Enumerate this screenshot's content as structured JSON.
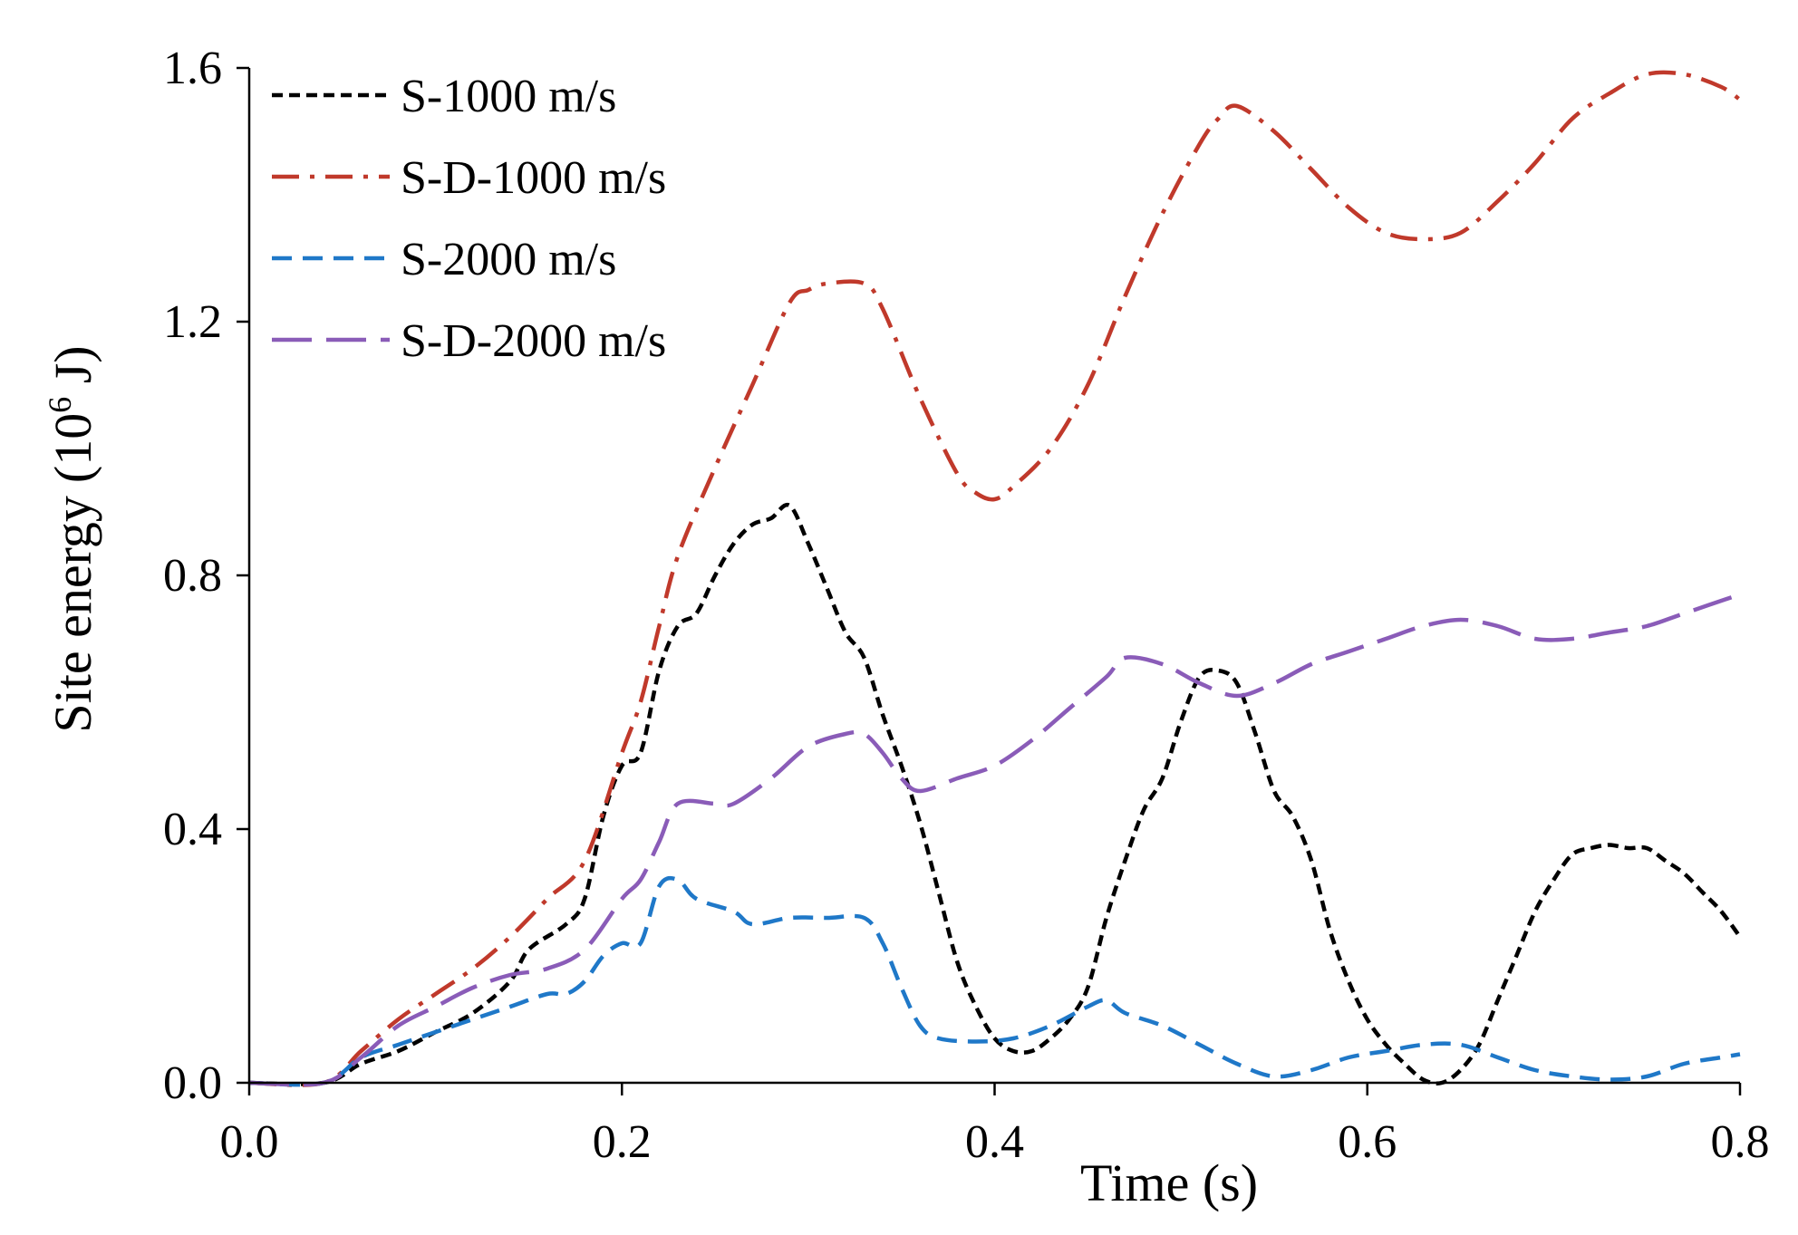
{
  "chart_data": {
    "type": "line",
    "title": "",
    "xlabel": "Time (s)",
    "ylabel": "Site energy",
    "ylabel_unit": "(10",
    "ylabel_exp": "6",
    "ylabel_unit_end": " J)",
    "xlim": [
      0,
      0.8
    ],
    "ylim": [
      0,
      1.6
    ],
    "x_ticks": [
      0.0,
      0.2,
      0.4,
      0.6,
      0.8
    ],
    "y_ticks": [
      0.0,
      0.4,
      0.8,
      1.2,
      1.6
    ],
    "x_tick_labels": [
      "0.0",
      "0.2",
      "0.4",
      "0.6",
      "0.8"
    ],
    "y_tick_labels": [
      "0.0",
      "0.4",
      "0.8",
      "1.2",
      "1.6"
    ],
    "grid": false,
    "legend_position": "top-left",
    "series": [
      {
        "name": "S-1000 m/s",
        "color": "#000000",
        "dash": "short",
        "points": [
          [
            0,
            0
          ],
          [
            0.04,
            0
          ],
          [
            0.06,
            0.03
          ],
          [
            0.08,
            0.05
          ],
          [
            0.1,
            0.08
          ],
          [
            0.12,
            0.11
          ],
          [
            0.14,
            0.16
          ],
          [
            0.15,
            0.21
          ],
          [
            0.17,
            0.25
          ],
          [
            0.18,
            0.29
          ],
          [
            0.19,
            0.42
          ],
          [
            0.2,
            0.5
          ],
          [
            0.21,
            0.52
          ],
          [
            0.22,
            0.65
          ],
          [
            0.23,
            0.72
          ],
          [
            0.24,
            0.74
          ],
          [
            0.25,
            0.8
          ],
          [
            0.26,
            0.85
          ],
          [
            0.27,
            0.88
          ],
          [
            0.28,
            0.89
          ],
          [
            0.29,
            0.91
          ],
          [
            0.3,
            0.85
          ],
          [
            0.31,
            0.78
          ],
          [
            0.32,
            0.71
          ],
          [
            0.33,
            0.67
          ],
          [
            0.34,
            0.58
          ],
          [
            0.35,
            0.5
          ],
          [
            0.36,
            0.41
          ],
          [
            0.37,
            0.3
          ],
          [
            0.38,
            0.19
          ],
          [
            0.39,
            0.12
          ],
          [
            0.4,
            0.07
          ],
          [
            0.41,
            0.05
          ],
          [
            0.42,
            0.05
          ],
          [
            0.43,
            0.07
          ],
          [
            0.44,
            0.1
          ],
          [
            0.45,
            0.15
          ],
          [
            0.46,
            0.26
          ],
          [
            0.47,
            0.35
          ],
          [
            0.48,
            0.43
          ],
          [
            0.49,
            0.48
          ],
          [
            0.5,
            0.57
          ],
          [
            0.51,
            0.64
          ],
          [
            0.52,
            0.65
          ],
          [
            0.53,
            0.63
          ],
          [
            0.54,
            0.55
          ],
          [
            0.55,
            0.46
          ],
          [
            0.56,
            0.42
          ],
          [
            0.57,
            0.35
          ],
          [
            0.58,
            0.24
          ],
          [
            0.59,
            0.16
          ],
          [
            0.6,
            0.1
          ],
          [
            0.61,
            0.06
          ],
          [
            0.62,
            0.03
          ],
          [
            0.63,
            0.005
          ],
          [
            0.64,
            0
          ],
          [
            0.65,
            0.02
          ],
          [
            0.66,
            0.06
          ],
          [
            0.67,
            0.13
          ],
          [
            0.68,
            0.2
          ],
          [
            0.69,
            0.27
          ],
          [
            0.7,
            0.32
          ],
          [
            0.71,
            0.36
          ],
          [
            0.72,
            0.37
          ],
          [
            0.73,
            0.375
          ],
          [
            0.74,
            0.37
          ],
          [
            0.75,
            0.37
          ],
          [
            0.76,
            0.35
          ],
          [
            0.77,
            0.33
          ],
          [
            0.78,
            0.3
          ],
          [
            0.79,
            0.27
          ],
          [
            0.8,
            0.23
          ]
        ]
      },
      {
        "name": "S-D-1000 m/s",
        "color": "#c0392b",
        "dash": "dashdot",
        "points": [
          [
            0,
            0
          ],
          [
            0.04,
            0
          ],
          [
            0.06,
            0.05
          ],
          [
            0.08,
            0.1
          ],
          [
            0.1,
            0.14
          ],
          [
            0.12,
            0.18
          ],
          [
            0.14,
            0.23
          ],
          [
            0.16,
            0.29
          ],
          [
            0.18,
            0.35
          ],
          [
            0.2,
            0.52
          ],
          [
            0.21,
            0.6
          ],
          [
            0.22,
            0.72
          ],
          [
            0.23,
            0.83
          ],
          [
            0.25,
            0.97
          ],
          [
            0.27,
            1.1
          ],
          [
            0.29,
            1.23
          ],
          [
            0.3,
            1.25
          ],
          [
            0.31,
            1.26
          ],
          [
            0.33,
            1.26
          ],
          [
            0.34,
            1.22
          ],
          [
            0.36,
            1.08
          ],
          [
            0.38,
            0.96
          ],
          [
            0.39,
            0.93
          ],
          [
            0.4,
            0.92
          ],
          [
            0.41,
            0.94
          ],
          [
            0.43,
            1.0
          ],
          [
            0.45,
            1.1
          ],
          [
            0.47,
            1.24
          ],
          [
            0.49,
            1.37
          ],
          [
            0.51,
            1.48
          ],
          [
            0.52,
            1.52
          ],
          [
            0.53,
            1.54
          ],
          [
            0.55,
            1.5
          ],
          [
            0.57,
            1.44
          ],
          [
            0.59,
            1.38
          ],
          [
            0.61,
            1.34
          ],
          [
            0.63,
            1.33
          ],
          [
            0.65,
            1.34
          ],
          [
            0.67,
            1.39
          ],
          [
            0.69,
            1.45
          ],
          [
            0.71,
            1.52
          ],
          [
            0.73,
            1.56
          ],
          [
            0.75,
            1.59
          ],
          [
            0.77,
            1.59
          ],
          [
            0.79,
            1.57
          ],
          [
            0.8,
            1.55
          ]
        ]
      },
      {
        "name": "S-2000 m/s",
        "color": "#1f78c8",
        "dash": "medium",
        "points": [
          [
            0,
            0
          ],
          [
            0.04,
            0
          ],
          [
            0.06,
            0.04
          ],
          [
            0.08,
            0.06
          ],
          [
            0.1,
            0.08
          ],
          [
            0.12,
            0.1
          ],
          [
            0.14,
            0.12
          ],
          [
            0.16,
            0.14
          ],
          [
            0.17,
            0.14
          ],
          [
            0.18,
            0.16
          ],
          [
            0.19,
            0.2
          ],
          [
            0.2,
            0.22
          ],
          [
            0.21,
            0.22
          ],
          [
            0.22,
            0.31
          ],
          [
            0.23,
            0.32
          ],
          [
            0.24,
            0.29
          ],
          [
            0.26,
            0.27
          ],
          [
            0.27,
            0.25
          ],
          [
            0.29,
            0.26
          ],
          [
            0.31,
            0.26
          ],
          [
            0.33,
            0.26
          ],
          [
            0.34,
            0.22
          ],
          [
            0.35,
            0.15
          ],
          [
            0.36,
            0.09
          ],
          [
            0.37,
            0.07
          ],
          [
            0.39,
            0.065
          ],
          [
            0.41,
            0.07
          ],
          [
            0.43,
            0.09
          ],
          [
            0.45,
            0.12
          ],
          [
            0.46,
            0.13
          ],
          [
            0.47,
            0.11
          ],
          [
            0.49,
            0.09
          ],
          [
            0.51,
            0.06
          ],
          [
            0.53,
            0.03
          ],
          [
            0.55,
            0.01
          ],
          [
            0.57,
            0.02
          ],
          [
            0.59,
            0.04
          ],
          [
            0.61,
            0.05
          ],
          [
            0.63,
            0.06
          ],
          [
            0.65,
            0.06
          ],
          [
            0.67,
            0.04
          ],
          [
            0.69,
            0.02
          ],
          [
            0.71,
            0.01
          ],
          [
            0.73,
            0.005
          ],
          [
            0.75,
            0.01
          ],
          [
            0.77,
            0.03
          ],
          [
            0.79,
            0.04
          ],
          [
            0.8,
            0.045
          ]
        ]
      },
      {
        "name": "S-D-2000 m/s",
        "color": "#8a5cb8",
        "dash": "long",
        "points": [
          [
            0,
            0
          ],
          [
            0.04,
            0
          ],
          [
            0.06,
            0.04
          ],
          [
            0.08,
            0.09
          ],
          [
            0.1,
            0.12
          ],
          [
            0.12,
            0.15
          ],
          [
            0.14,
            0.17
          ],
          [
            0.16,
            0.18
          ],
          [
            0.18,
            0.21
          ],
          [
            0.2,
            0.29
          ],
          [
            0.21,
            0.32
          ],
          [
            0.22,
            0.38
          ],
          [
            0.23,
            0.44
          ],
          [
            0.25,
            0.44
          ],
          [
            0.26,
            0.44
          ],
          [
            0.28,
            0.48
          ],
          [
            0.3,
            0.53
          ],
          [
            0.32,
            0.55
          ],
          [
            0.33,
            0.55
          ],
          [
            0.34,
            0.52
          ],
          [
            0.35,
            0.48
          ],
          [
            0.36,
            0.46
          ],
          [
            0.38,
            0.48
          ],
          [
            0.4,
            0.5
          ],
          [
            0.42,
            0.54
          ],
          [
            0.44,
            0.59
          ],
          [
            0.46,
            0.64
          ],
          [
            0.47,
            0.67
          ],
          [
            0.49,
            0.66
          ],
          [
            0.51,
            0.63
          ],
          [
            0.53,
            0.61
          ],
          [
            0.55,
            0.63
          ],
          [
            0.57,
            0.66
          ],
          [
            0.59,
            0.68
          ],
          [
            0.61,
            0.7
          ],
          [
            0.63,
            0.72
          ],
          [
            0.65,
            0.73
          ],
          [
            0.67,
            0.72
          ],
          [
            0.69,
            0.7
          ],
          [
            0.71,
            0.7
          ],
          [
            0.73,
            0.71
          ],
          [
            0.75,
            0.72
          ],
          [
            0.77,
            0.74
          ],
          [
            0.8,
            0.77
          ]
        ]
      }
    ]
  }
}
